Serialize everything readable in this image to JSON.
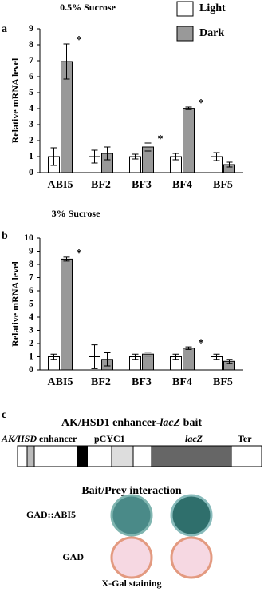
{
  "chart_data": [
    {
      "type": "bar",
      "panel": "a",
      "title": "0.5% Sucrose",
      "y_label": "Relative mRNA level",
      "categories": [
        "ABI5",
        "BF2",
        "BF3",
        "BF4",
        "BF5"
      ],
      "series": [
        {
          "name": "Light",
          "color": "#ffffff",
          "values": [
            1,
            1,
            1,
            1,
            1
          ],
          "errors": [
            0.55,
            0.4,
            0.15,
            0.2,
            0.25
          ]
        },
        {
          "name": "Dark",
          "color": "#999999",
          "values": [
            6.95,
            1.2,
            1.6,
            4.02,
            0.5
          ],
          "errors": [
            1.1,
            0.4,
            0.25,
            0.08,
            0.15
          ]
        }
      ],
      "significance": [
        "*",
        null,
        "*",
        "*",
        null
      ],
      "ylim": [
        0,
        9
      ],
      "yticks": [
        0,
        1,
        2,
        3,
        4,
        5,
        6,
        7,
        8,
        9
      ],
      "grid": false
    },
    {
      "type": "bar",
      "panel": "b",
      "title": "3% Sucrose",
      "y_label": "Relative mRNA level",
      "categories": [
        "ABI5",
        "BF2",
        "BF3",
        "BF4",
        "BF5"
      ],
      "series": [
        {
          "color": "#ffffff",
          "values": [
            1,
            1,
            1,
            1,
            1
          ],
          "errors": [
            0.2,
            0.9,
            0.2,
            0.2,
            0.2
          ]
        },
        {
          "color": "#999999",
          "values": [
            8.4,
            0.8,
            1.2,
            1.65,
            0.65
          ],
          "errors": [
            0.15,
            0.5,
            0.15,
            0.1,
            0.15
          ]
        }
      ],
      "significance": [
        "*",
        null,
        null,
        "*",
        null
      ],
      "ylim": [
        0,
        10
      ],
      "yticks": [
        0,
        1,
        2,
        3,
        4,
        5,
        6,
        7,
        8,
        9,
        10
      ],
      "grid": false
    }
  ],
  "diagram": {
    "panel": "c",
    "title": [
      "AK/HSD1 enhancer-",
      "lacZ",
      " bait"
    ],
    "construct": {
      "promoter": "AK/HSD",
      "enhancer": " enhancer",
      "pcyc": "pCYC1",
      "reporter": "lacZ",
      "terminator": "Ter"
    },
    "assay_title": "Bait/Prey interaction",
    "rows": [
      "GAD::ABI5",
      "GAD"
    ],
    "caption": "X-Gal staining"
  }
}
